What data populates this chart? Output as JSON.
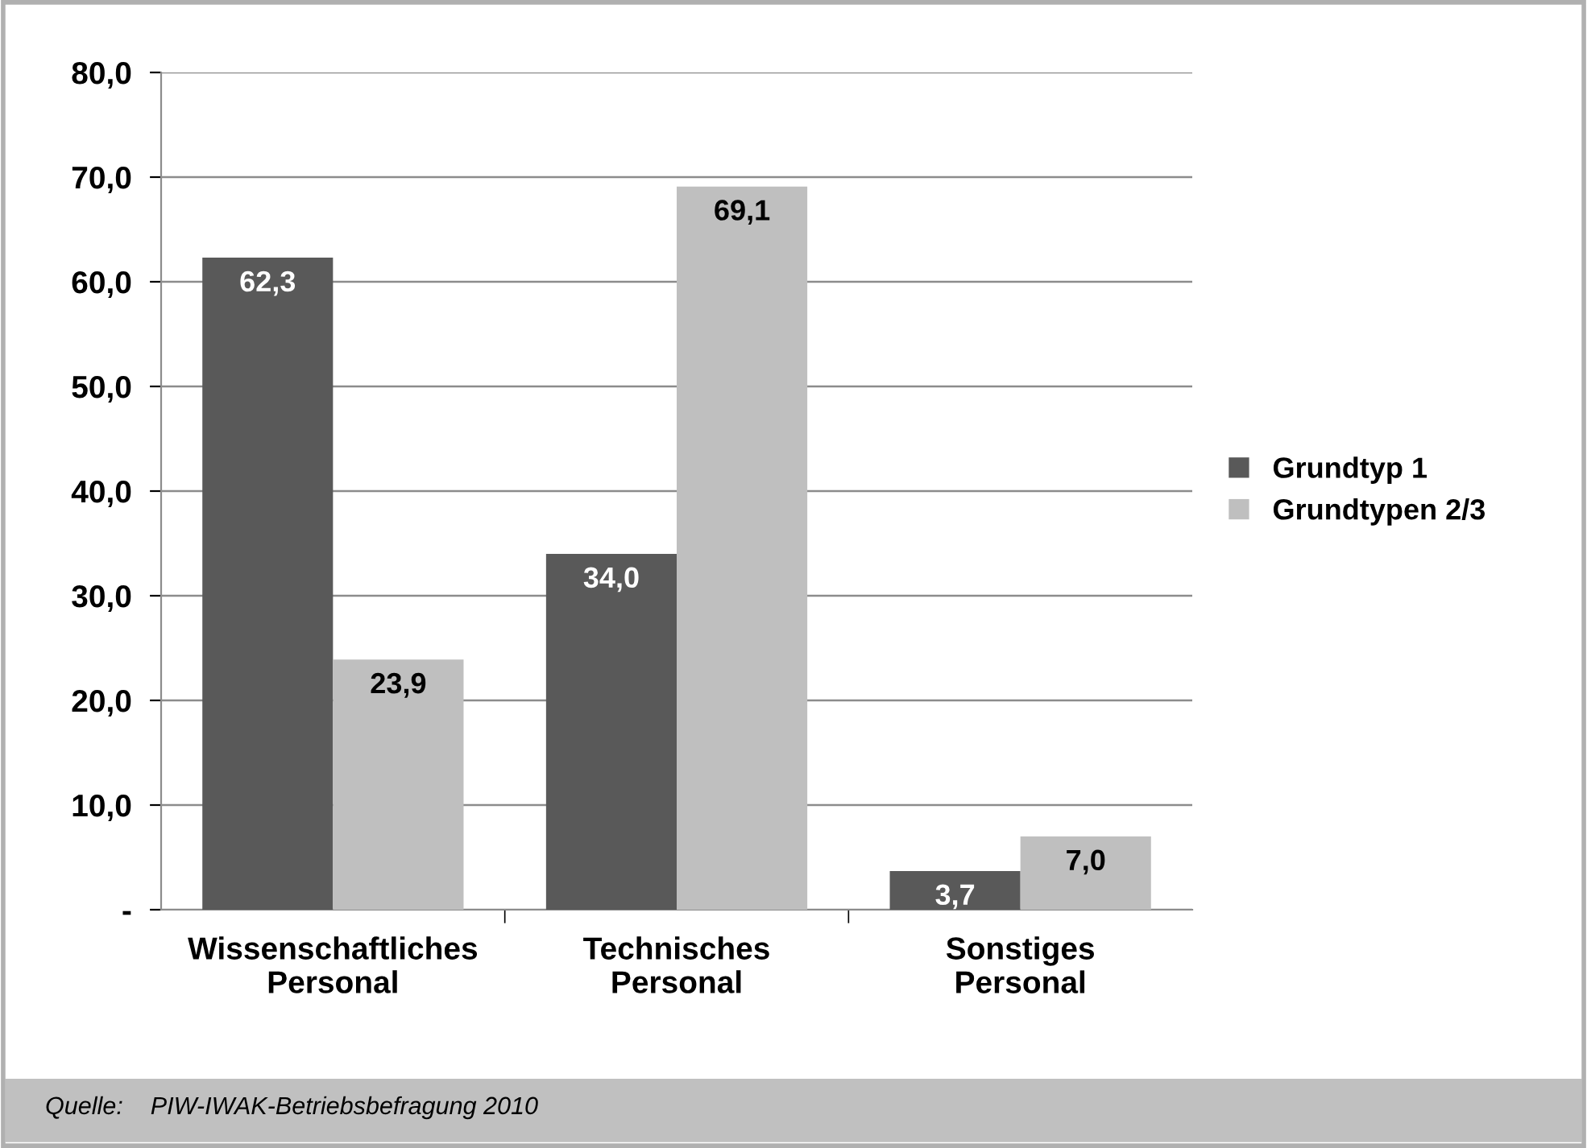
{
  "chart_data": {
    "type": "bar",
    "categories": [
      "Wissenschaftliches\nPersonal",
      "Technisches\nPersonal",
      "Sonstiges\nPersonal"
    ],
    "series": [
      {
        "name": "Grundtyp 1",
        "color": "#595959",
        "values": [
          62.3,
          34.0,
          3.7
        ],
        "value_labels": [
          "62,3",
          "34,0",
          "3,7"
        ]
      },
      {
        "name": "Grundtypen 2/3",
        "color": "#bfbfbf",
        "values": [
          23.9,
          69.1,
          7.0
        ],
        "value_labels": [
          "23,9",
          "69,1",
          "7,0"
        ]
      }
    ],
    "ylim": [
      0,
      80
    ],
    "yticks": [
      {
        "value": 0,
        "label": "-"
      },
      {
        "value": 10,
        "label": "10,0"
      },
      {
        "value": 20,
        "label": "20,0"
      },
      {
        "value": 30,
        "label": "30,0"
      },
      {
        "value": 40,
        "label": "40,0"
      },
      {
        "value": 50,
        "label": "50,0"
      },
      {
        "value": 60,
        "label": "60,0"
      },
      {
        "value": 70,
        "label": "70,0"
      },
      {
        "value": 80,
        "label": "80,0"
      }
    ],
    "grid": "y",
    "legend": "right",
    "annotations": [
      "Quelle:    PIW-IWAK-Betriebsbefragung 2010"
    ]
  }
}
